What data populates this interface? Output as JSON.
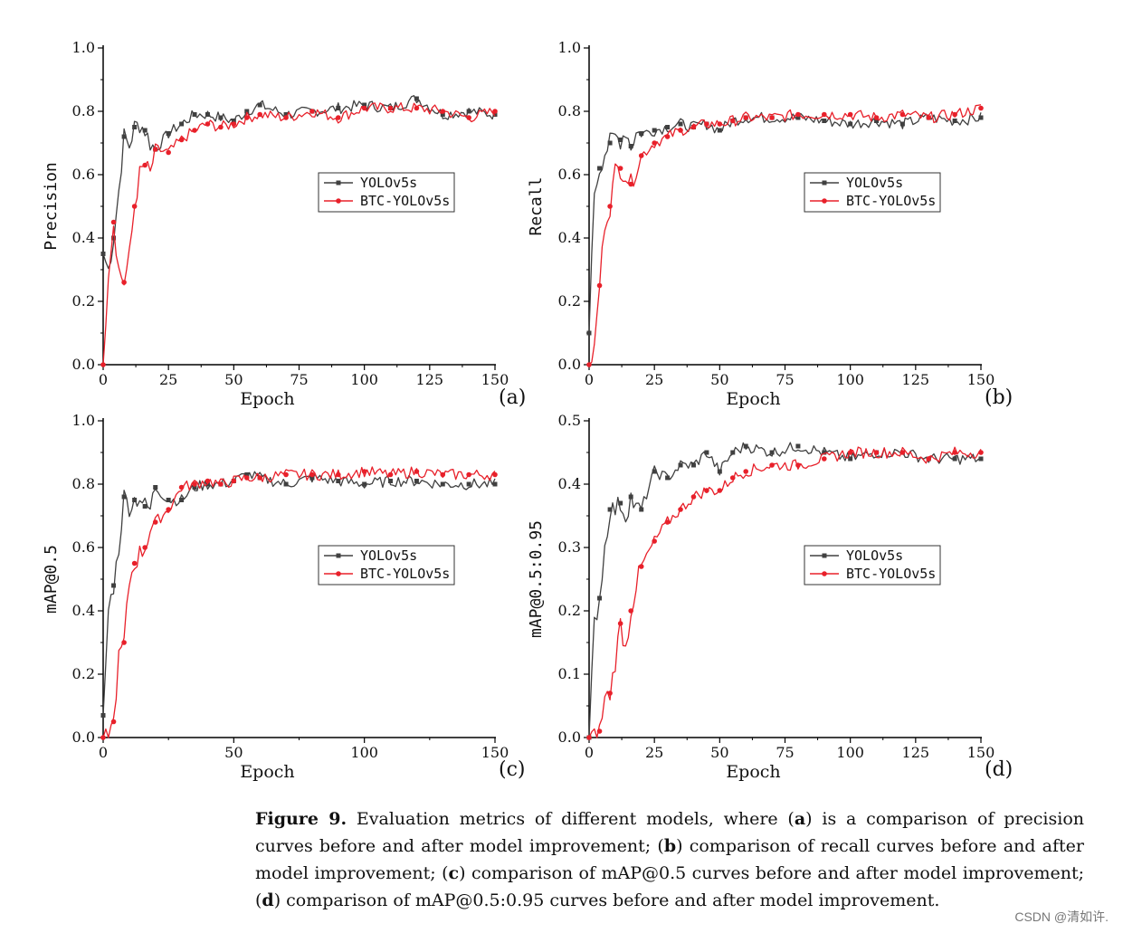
{
  "figure": {
    "caption_label": "Figure 9.",
    "caption_parts": [
      {
        "t": " Evaluation metrics of different models, where (",
        "b": false
      },
      {
        "t": "a",
        "b": true
      },
      {
        "t": ") is a comparison of precision curves before and after model improvement; (",
        "b": false
      },
      {
        "t": "b",
        "b": true
      },
      {
        "t": ") comparison of recall curves before and after model improvement; (",
        "b": false
      },
      {
        "t": "c",
        "b": true
      },
      {
        "t": ") comparison of mAP@0.5 curves before and after model improvement; (",
        "b": false
      },
      {
        "t": "d",
        "b": true
      },
      {
        "t": ") comparison of mAP@0.5:0.95 curves before and after model improvement.",
        "b": false
      }
    ]
  },
  "watermark": "CSDN @清如许.",
  "colors": {
    "yolov5s": "#404040",
    "btc": "#e8202a"
  },
  "chart_data": [
    {
      "type": "line",
      "panel": "(a)",
      "xlabel": "Epoch",
      "ylabel": "Precision",
      "xlim": [
        0,
        150
      ],
      "ylim": [
        0,
        1
      ],
      "xticks": [
        "0",
        "25",
        "50",
        "75",
        "100",
        "125",
        "150"
      ],
      "yticks": [
        "0.0",
        "0.2",
        "0.4",
        "0.6",
        "0.8",
        "1.0"
      ],
      "legend": [
        "YOLOv5s",
        "BTC-YOLOv5s"
      ],
      "x": [
        0,
        2,
        4,
        6,
        8,
        10,
        12,
        14,
        16,
        18,
        20,
        25,
        30,
        35,
        40,
        45,
        50,
        55,
        60,
        70,
        80,
        90,
        100,
        110,
        120,
        130,
        140,
        150
      ],
      "series": [
        {
          "name": "YOLOv5s",
          "values": [
            0.35,
            0.3,
            0.4,
            0.55,
            0.72,
            0.69,
            0.75,
            0.76,
            0.74,
            0.7,
            0.68,
            0.73,
            0.76,
            0.79,
            0.79,
            0.78,
            0.77,
            0.8,
            0.82,
            0.79,
            0.8,
            0.81,
            0.82,
            0.81,
            0.84,
            0.79,
            0.8,
            0.79
          ]
        },
        {
          "name": "BTC-YOLOv5s",
          "values": [
            0.0,
            0.3,
            0.45,
            0.3,
            0.26,
            0.34,
            0.5,
            0.6,
            0.63,
            0.6,
            0.68,
            0.67,
            0.71,
            0.74,
            0.76,
            0.75,
            0.76,
            0.78,
            0.79,
            0.78,
            0.8,
            0.78,
            0.81,
            0.81,
            0.81,
            0.8,
            0.78,
            0.8
          ]
        }
      ]
    },
    {
      "type": "line",
      "panel": "(b)",
      "xlabel": "Epoch",
      "ylabel": "Recall",
      "xlim": [
        0,
        150
      ],
      "ylim": [
        0,
        1
      ],
      "xticks": [
        "0",
        "25",
        "50",
        "75",
        "100",
        "125",
        "150"
      ],
      "yticks": [
        "0.0",
        "0.2",
        "0.4",
        "0.6",
        "0.8",
        "1.0"
      ],
      "legend": [
        "YOLOv5s",
        "BTC-YOLOv5s"
      ],
      "x": [
        0,
        2,
        4,
        6,
        8,
        10,
        12,
        14,
        16,
        18,
        20,
        25,
        30,
        35,
        40,
        45,
        50,
        55,
        60,
        70,
        80,
        90,
        100,
        110,
        120,
        130,
        140,
        150
      ],
      "series": [
        {
          "name": "YOLOv5s",
          "values": [
            0.1,
            0.55,
            0.62,
            0.67,
            0.7,
            0.72,
            0.71,
            0.74,
            0.69,
            0.73,
            0.73,
            0.74,
            0.75,
            0.76,
            0.75,
            0.76,
            0.74,
            0.77,
            0.78,
            0.78,
            0.78,
            0.77,
            0.76,
            0.77,
            0.76,
            0.78,
            0.77,
            0.78
          ]
        },
        {
          "name": "BTC-YOLOv5s",
          "values": [
            0.0,
            0.05,
            0.25,
            0.45,
            0.5,
            0.61,
            0.62,
            0.6,
            0.57,
            0.62,
            0.66,
            0.7,
            0.72,
            0.74,
            0.75,
            0.76,
            0.76,
            0.77,
            0.78,
            0.78,
            0.79,
            0.79,
            0.79,
            0.78,
            0.79,
            0.78,
            0.79,
            0.81
          ]
        }
      ]
    },
    {
      "type": "line",
      "panel": "(c)",
      "xlabel": "Epoch",
      "ylabel": "mAP@0.5",
      "xlim": [
        0,
        150
      ],
      "ylim": [
        0,
        1
      ],
      "xticks": [
        "0",
        "50",
        "100",
        "150"
      ],
      "yticks": [
        "0.0",
        "0.2",
        "0.4",
        "0.6",
        "0.8",
        "1.0"
      ],
      "legend": [
        "YOLOv5s",
        "BTC-YOLOv5s"
      ],
      "x": [
        0,
        2,
        4,
        6,
        8,
        10,
        12,
        14,
        16,
        18,
        20,
        25,
        30,
        35,
        40,
        45,
        50,
        55,
        60,
        70,
        80,
        90,
        100,
        110,
        120,
        130,
        140,
        150
      ],
      "series": [
        {
          "name": "YOLOv5s",
          "values": [
            0.07,
            0.4,
            0.48,
            0.6,
            0.76,
            0.73,
            0.75,
            0.76,
            0.73,
            0.72,
            0.79,
            0.75,
            0.75,
            0.79,
            0.8,
            0.8,
            0.81,
            0.83,
            0.82,
            0.8,
            0.82,
            0.81,
            0.8,
            0.81,
            0.81,
            0.8,
            0.8,
            0.8
          ]
        },
        {
          "name": "BTC-YOLOv5s",
          "values": [
            0.0,
            0.0,
            0.05,
            0.25,
            0.3,
            0.49,
            0.55,
            0.58,
            0.6,
            0.66,
            0.68,
            0.72,
            0.79,
            0.8,
            0.81,
            0.8,
            0.81,
            0.82,
            0.82,
            0.83,
            0.83,
            0.83,
            0.84,
            0.83,
            0.84,
            0.83,
            0.83,
            0.83
          ]
        }
      ]
    },
    {
      "type": "line",
      "panel": "(d)",
      "xlabel": "Epoch",
      "ylabel": "mAP@0.5:0.95",
      "xlim": [
        0,
        150
      ],
      "ylim": [
        0,
        0.5
      ],
      "xticks": [
        "0",
        "25",
        "50",
        "75",
        "100",
        "125",
        "150"
      ],
      "yticks": [
        "0.0",
        "0.1",
        "0.2",
        "0.3",
        "0.4",
        "0.5"
      ],
      "legend": [
        "YOLOv5s",
        "BTC-YOLOv5s"
      ],
      "x": [
        0,
        2,
        4,
        6,
        8,
        10,
        12,
        14,
        16,
        18,
        20,
        25,
        30,
        35,
        40,
        45,
        50,
        55,
        60,
        70,
        80,
        90,
        100,
        110,
        120,
        130,
        140,
        150
      ],
      "series": [
        {
          "name": "YOLOv5s",
          "values": [
            0.0,
            0.18,
            0.22,
            0.3,
            0.36,
            0.36,
            0.37,
            0.35,
            0.38,
            0.36,
            0.36,
            0.42,
            0.41,
            0.43,
            0.43,
            0.45,
            0.42,
            0.45,
            0.46,
            0.45,
            0.46,
            0.45,
            0.44,
            0.45,
            0.45,
            0.44,
            0.44,
            0.44
          ]
        },
        {
          "name": "BTC-YOLOv5s",
          "values": [
            0.0,
            0.0,
            0.01,
            0.06,
            0.07,
            0.12,
            0.18,
            0.14,
            0.2,
            0.24,
            0.27,
            0.31,
            0.34,
            0.36,
            0.38,
            0.39,
            0.39,
            0.41,
            0.42,
            0.43,
            0.43,
            0.44,
            0.45,
            0.45,
            0.45,
            0.44,
            0.45,
            0.45
          ]
        }
      ]
    }
  ]
}
